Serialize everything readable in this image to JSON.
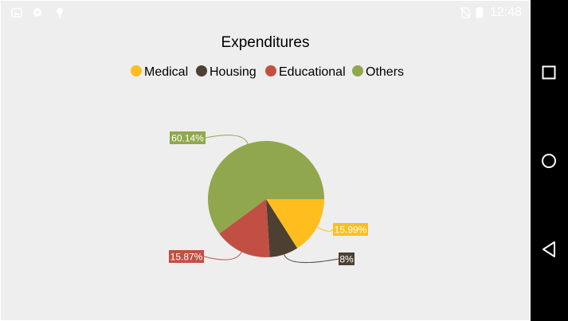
{
  "statusbar": {
    "time": "12:48",
    "icons": [
      "image-icon",
      "chat-icon",
      "android-icon"
    ],
    "right_icons": [
      "no-sim-icon",
      "battery-icon"
    ]
  },
  "navbar": {
    "buttons": [
      "recents-button",
      "home-button",
      "back-button"
    ]
  },
  "colors": {
    "Medical": "#FFBE1E",
    "Housing": "#4D4032",
    "Educational": "#C24F44",
    "Others": "#91A74D",
    "background": "#EEEEEE"
  },
  "chart_data": {
    "type": "pie",
    "title": "Expenditures",
    "legend_position": "top",
    "categories": [
      "Medical",
      "Housing",
      "Educational",
      "Others"
    ],
    "values": [
      15.99,
      8,
      15.87,
      60.14
    ],
    "labels": [
      "15.99%",
      "8%",
      "15.87%",
      "60.14%"
    ]
  }
}
